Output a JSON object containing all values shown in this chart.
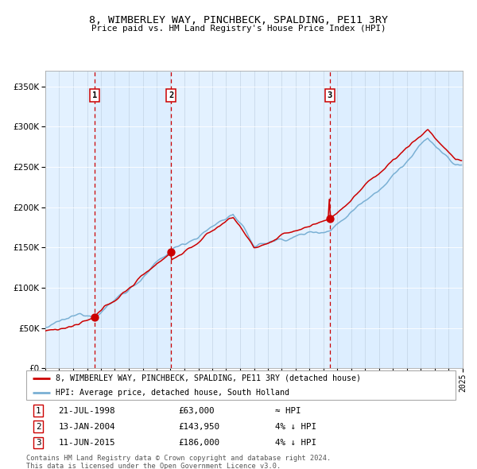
{
  "title": "8, WIMBERLEY WAY, PINCHBECK, SPALDING, PE11 3RY",
  "subtitle": "Price paid vs. HM Land Registry's House Price Index (HPI)",
  "legend_line1": "8, WIMBERLEY WAY, PINCHBECK, SPALDING, PE11 3RY (detached house)",
  "legend_line2": "HPI: Average price, detached house, South Holland",
  "purchases": [
    {
      "date": "1998-07-21",
      "price": 63000,
      "label": "1",
      "note": "≈ HPI"
    },
    {
      "date": "2004-01-13",
      "price": 143950,
      "label": "2",
      "note": "4% ↓ HPI"
    },
    {
      "date": "2015-06-11",
      "price": 186000,
      "label": "3",
      "note": "4% ↓ HPI"
    }
  ],
  "footer1": "Contains HM Land Registry data © Crown copyright and database right 2024.",
  "footer2": "This data is licensed under the Open Government Licence v3.0.",
  "hpi_color": "#7ab0d4",
  "price_color": "#cc0000",
  "vline_color": "#cc0000",
  "background_color": "#ddeeff",
  "ylim": [
    0,
    370000
  ],
  "yticks": [
    0,
    50000,
    100000,
    150000,
    200000,
    250000,
    300000,
    350000
  ],
  "year_start": 1995,
  "year_end": 2025
}
